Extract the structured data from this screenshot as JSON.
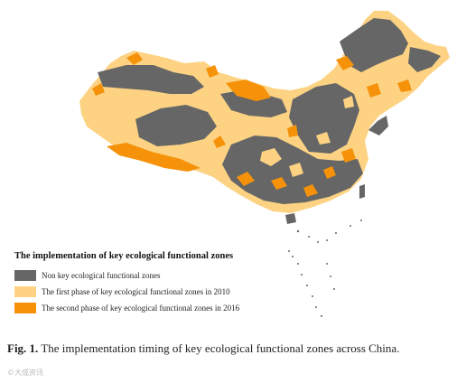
{
  "colors": {
    "non_key": "#666666",
    "first_phase": "#fdd383",
    "second_phase": "#f5920a"
  },
  "legend": {
    "title": "The implementation of key ecological functional zones",
    "items": [
      {
        "label": "Non key ecological functional zones",
        "color": "#666666"
      },
      {
        "label": "The first phase of key ecological functional zones in 2010",
        "color": "#fdd383"
      },
      {
        "label": "The second phase of key ecological functional zones in 2016",
        "color": "#f5920a"
      }
    ]
  },
  "caption": {
    "prefix": "Fig. 1.",
    "text": "The implementation timing of key ecological functional zones across China."
  },
  "watermark": "©大成资讯"
}
